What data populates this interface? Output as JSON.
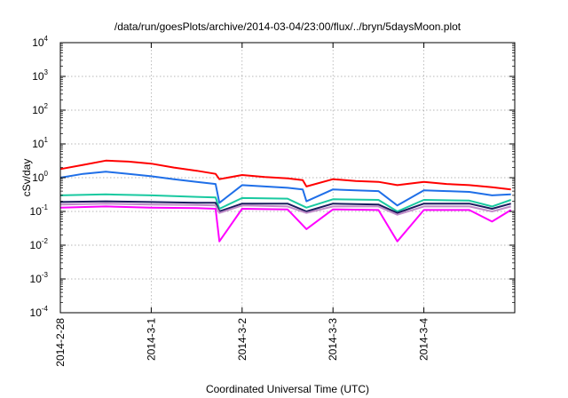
{
  "chart_data": {
    "type": "line",
    "title": "/data/run/goesPlots/archive/2014-03-04/23:00/flux/../bryn/5daysMoon.plot",
    "xlabel": "Coordinated Universal Time (UTC)",
    "ylabel": "cSv/day",
    "yscale": "log",
    "ylim": [
      0.0001,
      10000
    ],
    "xlim": [
      "2014-02-28",
      "2014-03-05"
    ],
    "grid": true,
    "legend": "none",
    "x_ticks": [
      "2014-2-28",
      "2014-3-1",
      "2014-3-2",
      "2014-3-3",
      "2014-3-4"
    ],
    "y_ticks": [
      {
        "base": "10",
        "exp": "-4",
        "value": 0.0001
      },
      {
        "base": "10",
        "exp": "-3",
        "value": 0.001
      },
      {
        "base": "10",
        "exp": "-2",
        "value": 0.01
      },
      {
        "base": "10",
        "exp": "-1",
        "value": 0.1
      },
      {
        "base": "10",
        "exp": "0",
        "value": 1
      },
      {
        "base": "10",
        "exp": "1",
        "value": 10
      },
      {
        "base": "10",
        "exp": "2",
        "value": 100
      },
      {
        "base": "10",
        "exp": "3",
        "value": 1000
      },
      {
        "base": "10",
        "exp": "4",
        "value": 10000
      }
    ],
    "series": [
      {
        "color": "#ff0000",
        "x": [
          "2014-02-28T00:00",
          "2014-02-28T06:00",
          "2014-02-28T12:00",
          "2014-02-28T18:00",
          "2014-03-01T00:00",
          "2014-03-01T06:00",
          "2014-03-01T12:00",
          "2014-03-01T17:00",
          "2014-03-01T18:00",
          "2014-03-02T00:00",
          "2014-03-02T06:00",
          "2014-03-02T12:00",
          "2014-03-02T16:00",
          "2014-03-02T17:00",
          "2014-03-03T00:00",
          "2014-03-03T06:00",
          "2014-03-03T12:00",
          "2014-03-03T17:00",
          "2014-03-04T00:00",
          "2014-03-04T06:00",
          "2014-03-04T12:00",
          "2014-03-04T18:00",
          "2014-03-04T23:00"
        ],
        "y": [
          1.8,
          2.4,
          3.2,
          3.0,
          2.6,
          2.0,
          1.6,
          1.3,
          0.9,
          1.2,
          1.05,
          0.95,
          0.85,
          0.55,
          0.9,
          0.8,
          0.75,
          0.6,
          0.75,
          0.65,
          0.6,
          0.52,
          0.45
        ]
      },
      {
        "color": "#1f6fe8",
        "x": [
          "2014-02-28T00:00",
          "2014-02-28T06:00",
          "2014-02-28T12:00",
          "2014-02-28T18:00",
          "2014-03-01T00:00",
          "2014-03-01T06:00",
          "2014-03-01T12:00",
          "2014-03-01T17:00",
          "2014-03-01T18:00",
          "2014-03-02T00:00",
          "2014-03-02T06:00",
          "2014-03-02T12:00",
          "2014-03-02T16:00",
          "2014-03-02T17:00",
          "2014-03-03T00:00",
          "2014-03-03T06:00",
          "2014-03-03T12:00",
          "2014-03-03T17:00",
          "2014-03-04T00:00",
          "2014-03-04T06:00",
          "2014-03-04T12:00",
          "2014-03-04T18:00",
          "2014-03-04T23:00"
        ],
        "y": [
          1.0,
          1.3,
          1.5,
          1.3,
          1.1,
          0.9,
          0.75,
          0.65,
          0.18,
          0.6,
          0.55,
          0.5,
          0.45,
          0.2,
          0.45,
          0.42,
          0.4,
          0.15,
          0.42,
          0.4,
          0.38,
          0.3,
          0.32
        ]
      },
      {
        "color": "#19c9a0",
        "x": [
          "2014-02-28T00:00",
          "2014-02-28T12:00",
          "2014-03-01T00:00",
          "2014-03-01T12:00",
          "2014-03-01T17:00",
          "2014-03-01T18:00",
          "2014-03-02T00:00",
          "2014-03-02T12:00",
          "2014-03-02T17:00",
          "2014-03-03T00:00",
          "2014-03-03T12:00",
          "2014-03-03T17:00",
          "2014-03-04T00:00",
          "2014-03-04T12:00",
          "2014-03-04T18:00",
          "2014-03-04T23:00"
        ],
        "y": [
          0.3,
          0.32,
          0.3,
          0.27,
          0.26,
          0.12,
          0.25,
          0.24,
          0.13,
          0.23,
          0.22,
          0.1,
          0.22,
          0.21,
          0.14,
          0.22
        ]
      },
      {
        "color": "#1b1b5e",
        "x": [
          "2014-02-28T00:00",
          "2014-02-28T12:00",
          "2014-03-01T00:00",
          "2014-03-01T12:00",
          "2014-03-01T17:00",
          "2014-03-01T18:00",
          "2014-03-02T00:00",
          "2014-03-02T12:00",
          "2014-03-02T17:00",
          "2014-03-03T00:00",
          "2014-03-03T12:00",
          "2014-03-03T17:00",
          "2014-03-04T00:00",
          "2014-03-04T12:00",
          "2014-03-04T18:00",
          "2014-03-04T23:00"
        ],
        "y": [
          0.19,
          0.2,
          0.19,
          0.18,
          0.18,
          0.1,
          0.17,
          0.17,
          0.1,
          0.17,
          0.16,
          0.09,
          0.17,
          0.17,
          0.12,
          0.17
        ]
      },
      {
        "color": "#c08cc8",
        "x": [
          "2014-02-28T00:00",
          "2014-02-28T12:00",
          "2014-03-01T00:00",
          "2014-03-01T12:00",
          "2014-03-01T17:00",
          "2014-03-01T18:00",
          "2014-03-02T00:00",
          "2014-03-02T12:00",
          "2014-03-02T17:00",
          "2014-03-03T00:00",
          "2014-03-03T12:00",
          "2014-03-03T17:00",
          "2014-03-04T00:00",
          "2014-03-04T12:00",
          "2014-03-04T18:00",
          "2014-03-04T23:00"
        ],
        "y": [
          0.16,
          0.17,
          0.16,
          0.155,
          0.15,
          0.09,
          0.15,
          0.14,
          0.09,
          0.14,
          0.14,
          0.08,
          0.14,
          0.14,
          0.1,
          0.14
        ]
      },
      {
        "color": "#ff00ff",
        "x": [
          "2014-02-28T00:00",
          "2014-02-28T12:00",
          "2014-03-01T00:00",
          "2014-03-01T12:00",
          "2014-03-01T17:00",
          "2014-03-01T18:00",
          "2014-03-02T00:00",
          "2014-03-02T12:00",
          "2014-03-02T17:00",
          "2014-03-03T00:00",
          "2014-03-03T12:00",
          "2014-03-03T17:00",
          "2014-03-04T00:00",
          "2014-03-04T12:00",
          "2014-03-04T18:00",
          "2014-03-04T23:00"
        ],
        "y": [
          0.13,
          0.14,
          0.13,
          0.125,
          0.12,
          0.013,
          0.12,
          0.115,
          0.03,
          0.115,
          0.11,
          0.013,
          0.11,
          0.11,
          0.05,
          0.11
        ]
      }
    ]
  }
}
